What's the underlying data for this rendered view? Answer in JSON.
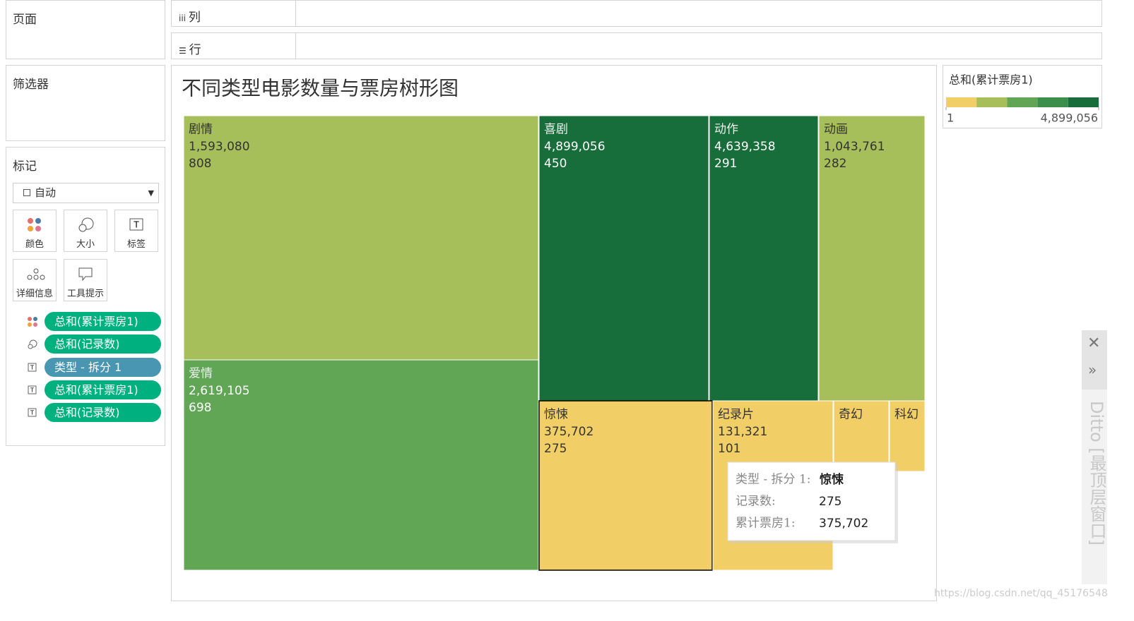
{
  "shelves": {
    "pages": "页面",
    "columns": "列",
    "rows": "行",
    "filters": "筛选器"
  },
  "marks": {
    "title": "标记",
    "mark_type": "自动",
    "buttons": [
      "颜色",
      "大小",
      "标签",
      "详细信息",
      "工具提示"
    ],
    "pills": [
      "总和(累计票房1)",
      "总和(记录数)",
      "类型 - 拆分 1",
      "总和(累计票房1)",
      "总和(记录数)"
    ]
  },
  "chart_data": {
    "type": "treemap",
    "title": "不同类型电影数量与票房树形图",
    "categories": [
      "剧情",
      "爱情",
      "喜剧",
      "动作",
      "动画",
      "惊悚",
      "纪录片",
      "奇幻",
      "科幻"
    ],
    "values": [
      1593080,
      2619105,
      4899056,
      4639358,
      1043761,
      375702,
      131321,
      null,
      null
    ],
    "value_labels": [
      "1,593,080",
      "2,619,105",
      "4,899,056",
      "4,639,358",
      "1,043,761",
      "375,702",
      "131,321",
      null,
      null
    ],
    "sizes": [
      808,
      698,
      450,
      291,
      282,
      275,
      101,
      null,
      null
    ],
    "legend": {
      "title": "总和(累计票房1)",
      "clim": [
        1,
        4899056
      ],
      "cticks": [
        1,
        {
          "value": 4899056,
          "label": "4,899,056"
        }
      ],
      "colors": [
        "#f2cf66",
        "#a6bf5a",
        "#60a655",
        "#3b8f4b",
        "#176e3a"
      ]
    }
  },
  "tooltip": {
    "rows": [
      [
        "类型 - 拆分 1:",
        "惊悚"
      ],
      [
        "记录数:",
        275
      ],
      [
        "累计票房1:",
        "375,702"
      ]
    ]
  },
  "side_panel": "Ditto [最顶层窗口]",
  "watermark": "https://blog.csdn.net/qq_45176548"
}
